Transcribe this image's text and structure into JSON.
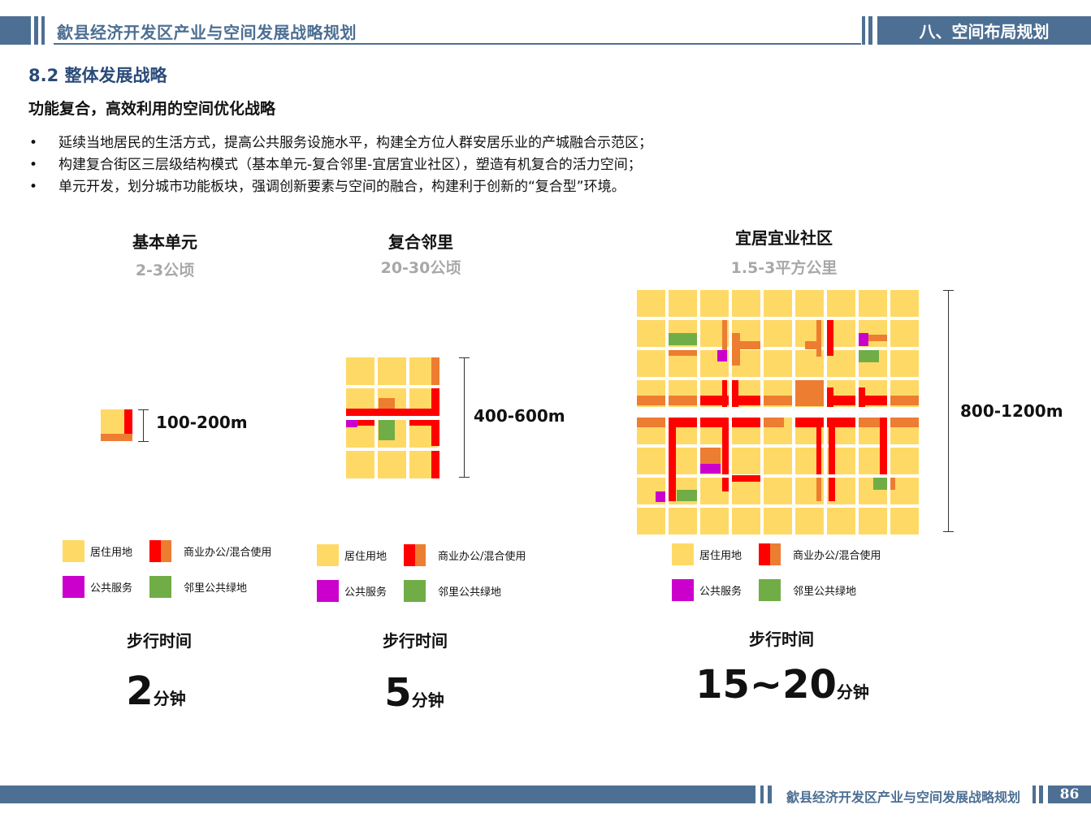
{
  "header": {
    "title": "歙县经济开发区产业与空间发展战略规划",
    "section": "八、空间布局规划"
  },
  "section_title": "8.2 整体发展战略",
  "subtitle": "功能复合，高效利用的空间优化战略",
  "bullets": [
    "延续当地居民的生活方式，提高公共服务设施水平，构建全方位人群安居乐业的产城融合示范区；",
    "构建复合街区三层级结构模式（基本单元-复合邻里-宜居宜业社区），塑造有机复合的活力空间；",
    "单元开发，划分城市功能板块，强调创新要素与空间的融合，构建利于创新的“复合型”环境。"
  ],
  "bullet_symbol": "•",
  "colors": {
    "residential": "#ffd966",
    "commercial_red": "#ff0000",
    "commercial_orange": "#ed7d31",
    "public": "#cc00cc",
    "green": "#70ad47",
    "brand": "#4d6f93"
  },
  "columns": [
    {
      "title": "基本单元",
      "area": "2-3公顷",
      "dimension": "100-200m",
      "walk_label": "步行时间",
      "walk_num": "2",
      "walk_unit": "分钟"
    },
    {
      "title": "复合邻里",
      "area": "20-30公顷",
      "dimension": "400-600m",
      "walk_label": "步行时间",
      "walk_num": "5",
      "walk_unit": "分钟"
    },
    {
      "title": "宜居宜业社区",
      "area": "1.5-3平方公里",
      "dimension": "800-1200m",
      "walk_label": "步行时间",
      "walk_num": "15~20",
      "walk_unit": "分钟"
    }
  ],
  "legend": {
    "residential": "居住用地",
    "commercial": "商业办公/混合使用",
    "public": "公共服务",
    "green": "邻里公共绿地"
  },
  "footer": {
    "title": "歙县经济开发区产业与空间发展战略规划",
    "page": "86"
  }
}
